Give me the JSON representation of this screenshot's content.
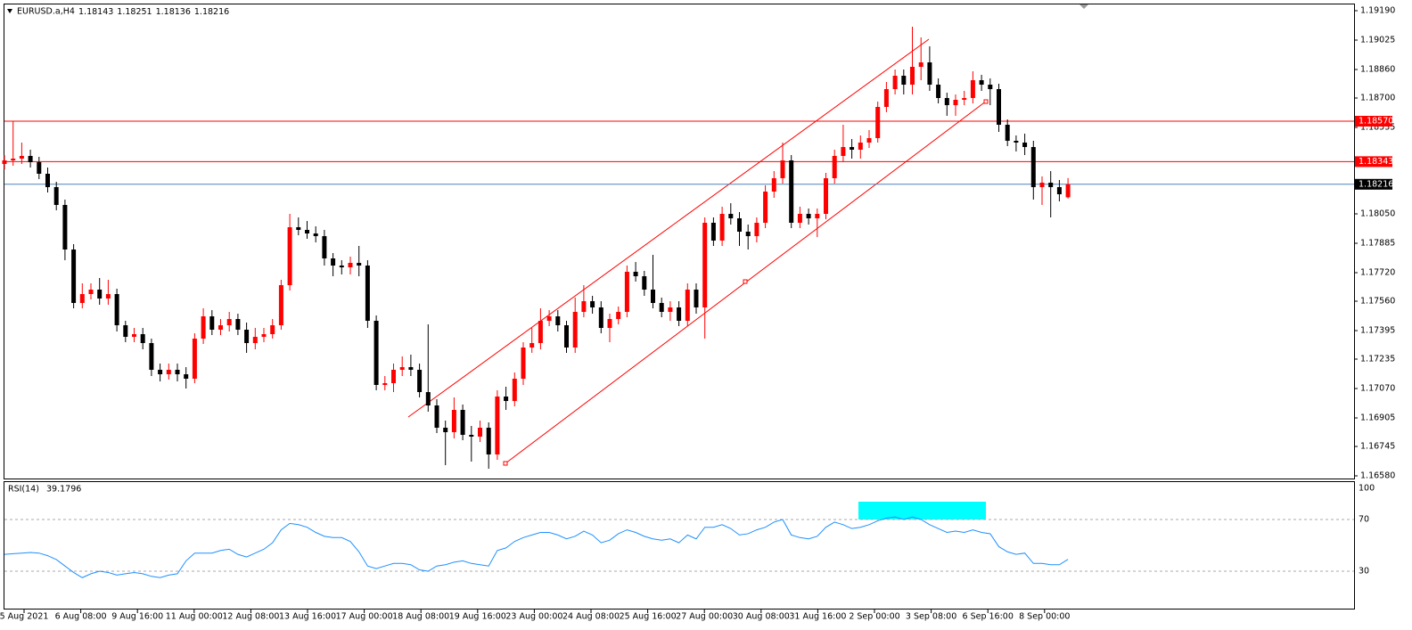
{
  "chart_data": {
    "type": "candlestick",
    "symbol": "EURUSD.a,H4",
    "up_color": "#ff0000",
    "down_color": "#000000",
    "ylim": [
      1.16565,
      1.1923
    ],
    "yticks": [
      {
        "value": 1.1919,
        "label": "1.19190"
      },
      {
        "value": 1.19025,
        "label": "1.19025"
      },
      {
        "value": 1.1886,
        "label": "1.18860"
      },
      {
        "value": 1.187,
        "label": "1.18700"
      },
      {
        "value": 1.18535,
        "label": "1.18535"
      },
      {
        "value": 1.1805,
        "label": "1.18050"
      },
      {
        "value": 1.17885,
        "label": "1.17885"
      },
      {
        "value": 1.1772,
        "label": "1.17720"
      },
      {
        "value": 1.1756,
        "label": "1.17560"
      },
      {
        "value": 1.17395,
        "label": "1.17395"
      },
      {
        "value": 1.17235,
        "label": "1.17235"
      },
      {
        "value": 1.1707,
        "label": "1.17070"
      },
      {
        "value": 1.16905,
        "label": "1.16905"
      },
      {
        "value": 1.16745,
        "label": "1.16745"
      },
      {
        "value": 1.1658,
        "label": "1.16580"
      }
    ],
    "levels": [
      {
        "value": 1.1857,
        "label": "1.18570"
      },
      1.18343
    ],
    "level_color": "#ff0000",
    "bid_color": "#4f81bd",
    "x_labels": [
      "5 Aug 2021",
      "6 Aug 08:00",
      "9 Aug 16:00",
      "11 Aug 00:00",
      "12 Aug 08:00",
      "13 Aug 16:00",
      "17 Aug 00:00",
      "18 Aug 08:00",
      "19 Aug 16:00",
      "23 Aug 00:00",
      "24 Aug 08:00",
      "25 Aug 16:00",
      "27 Aug 00:00",
      "30 Aug 08:00",
      "31 Aug 16:00",
      "2 Sep 00:00",
      "3 Sep 08:00",
      "6 Sep 16:00",
      "8 Sep 00:00"
    ],
    "candles": [
      [
        1.1833,
        1.1838,
        1.183,
        1.1835
      ],
      [
        1.1835,
        1.1857,
        1.1832,
        1.1836
      ],
      [
        1.1836,
        1.1845,
        1.1833,
        1.18375
      ],
      [
        1.18375,
        1.1841,
        1.1831,
        1.1834
      ],
      [
        1.1834,
        1.1837,
        1.18245,
        1.18275
      ],
      [
        1.18275,
        1.1831,
        1.1817,
        1.182
      ],
      [
        1.182,
        1.1823,
        1.1807,
        1.181
      ],
      [
        1.181,
        1.1813,
        1.1779,
        1.1785
      ],
      [
        1.1785,
        1.1788,
        1.1752,
        1.1755
      ],
      [
        1.1755,
        1.1766,
        1.1752,
        1.176
      ],
      [
        1.176,
        1.1766,
        1.1757,
        1.17625
      ],
      [
        1.17625,
        1.1769,
        1.1754,
        1.17575
      ],
      [
        1.17575,
        1.1768,
        1.1754,
        1.176
      ],
      [
        1.176,
        1.1763,
        1.1739,
        1.17425
      ],
      [
        1.17425,
        1.1745,
        1.1733,
        1.1736
      ],
      [
        1.1736,
        1.1741,
        1.1733,
        1.17375
      ],
      [
        1.17375,
        1.1741,
        1.1729,
        1.17325
      ],
      [
        1.17325,
        1.1735,
        1.1714,
        1.17175
      ],
      [
        1.17175,
        1.1721,
        1.1711,
        1.1715
      ],
      [
        1.1715,
        1.1721,
        1.1712,
        1.17175
      ],
      [
        1.17175,
        1.1721,
        1.1711,
        1.1715
      ],
      [
        1.1715,
        1.1719,
        1.1707,
        1.17125
      ],
      [
        1.17125,
        1.1738,
        1.171,
        1.1735
      ],
      [
        1.1735,
        1.1752,
        1.1732,
        1.17475
      ],
      [
        1.17475,
        1.1751,
        1.1737,
        1.174
      ],
      [
        1.174,
        1.1746,
        1.1737,
        1.17425
      ],
      [
        1.17425,
        1.175,
        1.1739,
        1.1746
      ],
      [
        1.1746,
        1.1749,
        1.1737,
        1.174
      ],
      [
        1.174,
        1.1744,
        1.1727,
        1.17325
      ],
      [
        1.17325,
        1.1741,
        1.1729,
        1.1736
      ],
      [
        1.1736,
        1.1741,
        1.1733,
        1.17375
      ],
      [
        1.17375,
        1.1746,
        1.1735,
        1.17425
      ],
      [
        1.17425,
        1.1768,
        1.174,
        1.1765
      ],
      [
        1.1765,
        1.1805,
        1.1762,
        1.17975
      ],
      [
        1.17975,
        1.1803,
        1.1793,
        1.1796
      ],
      [
        1.1796,
        1.1801,
        1.1791,
        1.1794
      ],
      [
        1.1794,
        1.1798,
        1.1789,
        1.17925
      ],
      [
        1.17925,
        1.1796,
        1.1776,
        1.178
      ],
      [
        1.178,
        1.1783,
        1.177,
        1.1776
      ],
      [
        1.1776,
        1.1779,
        1.1771,
        1.1775
      ],
      [
        1.1775,
        1.1781,
        1.1771,
        1.17775
      ],
      [
        1.17775,
        1.1787,
        1.177,
        1.1776
      ],
      [
        1.1776,
        1.1779,
        1.1741,
        1.1745
      ],
      [
        1.1745,
        1.1748,
        1.1706,
        1.1709
      ],
      [
        1.1709,
        1.1714,
        1.1706,
        1.171
      ],
      [
        1.171,
        1.1721,
        1.1705,
        1.17175
      ],
      [
        1.17175,
        1.1725,
        1.1714,
        1.1719
      ],
      [
        1.1719,
        1.1726,
        1.1714,
        1.17175
      ],
      [
        1.17175,
        1.1721,
        1.1702,
        1.1705
      ],
      [
        1.1705,
        1.1743,
        1.1694,
        1.16975
      ],
      [
        1.16975,
        1.1701,
        1.1682,
        1.1685
      ],
      [
        1.1685,
        1.1689,
        1.1664,
        1.16825
      ],
      [
        1.16825,
        1.1702,
        1.1679,
        1.1695
      ],
      [
        1.1695,
        1.1698,
        1.1678,
        1.1681
      ],
      [
        1.1681,
        1.1686,
        1.1666,
        1.168
      ],
      [
        1.168,
        1.1689,
        1.1677,
        1.1685
      ],
      [
        1.1685,
        1.1688,
        1.1662,
        1.167
      ],
      [
        1.167,
        1.1706,
        1.1667,
        1.17025
      ],
      [
        1.17025,
        1.1708,
        1.1695,
        1.17
      ],
      [
        1.17,
        1.1716,
        1.1697,
        1.17125
      ],
      [
        1.17125,
        1.1733,
        1.1709,
        1.173
      ],
      [
        1.173,
        1.1741,
        1.1727,
        1.17325
      ],
      [
        1.17325,
        1.1752,
        1.1729,
        1.1745
      ],
      [
        1.1745,
        1.1751,
        1.1742,
        1.17475
      ],
      [
        1.17475,
        1.1751,
        1.1739,
        1.17425
      ],
      [
        1.17425,
        1.1745,
        1.1727,
        1.173
      ],
      [
        1.173,
        1.1758,
        1.1727,
        1.175
      ],
      [
        1.175,
        1.1765,
        1.1747,
        1.1756
      ],
      [
        1.1756,
        1.1759,
        1.1749,
        1.17525
      ],
      [
        1.17525,
        1.1756,
        1.1738,
        1.1741
      ],
      [
        1.1741,
        1.1749,
        1.1733,
        1.1746
      ],
      [
        1.1746,
        1.1753,
        1.1743,
        1.175
      ],
      [
        1.175,
        1.1776,
        1.1747,
        1.17725
      ],
      [
        1.17725,
        1.1778,
        1.1767,
        1.177
      ],
      [
        1.177,
        1.1773,
        1.1759,
        1.17625
      ],
      [
        1.17625,
        1.1782,
        1.1752,
        1.1755
      ],
      [
        1.1755,
        1.1758,
        1.1747,
        1.175
      ],
      [
        1.175,
        1.1756,
        1.1745,
        1.17525
      ],
      [
        1.17525,
        1.1756,
        1.1742,
        1.1745
      ],
      [
        1.1745,
        1.1766,
        1.1742,
        1.17625
      ],
      [
        1.17625,
        1.1766,
        1.1749,
        1.17525
      ],
      [
        1.17525,
        1.1803,
        1.1735,
        1.18
      ],
      [
        1.18,
        1.1803,
        1.1787,
        1.179
      ],
      [
        1.179,
        1.1809,
        1.1787,
        1.1805
      ],
      [
        1.1805,
        1.1811,
        1.1799,
        1.18025
      ],
      [
        1.18025,
        1.1806,
        1.1787,
        1.1795
      ],
      [
        1.1795,
        1.1799,
        1.1785,
        1.17925
      ],
      [
        1.17925,
        1.1803,
        1.1789,
        1.18
      ],
      [
        1.18,
        1.1821,
        1.1797,
        1.18175
      ],
      [
        1.18175,
        1.1829,
        1.1814,
        1.1825
      ],
      [
        1.1825,
        1.1845,
        1.1822,
        1.1835
      ],
      [
        1.1835,
        1.1838,
        1.1797,
        1.18
      ],
      [
        1.18,
        1.1809,
        1.1797,
        1.1805
      ],
      [
        1.1805,
        1.1808,
        1.1799,
        1.18025
      ],
      [
        1.18025,
        1.1808,
        1.1792,
        1.1805
      ],
      [
        1.1805,
        1.1828,
        1.1802,
        1.1825
      ],
      [
        1.1825,
        1.1841,
        1.1822,
        1.18375
      ],
      [
        1.18375,
        1.1855,
        1.1834,
        1.18425
      ],
      [
        1.18425,
        1.1847,
        1.1836,
        1.1841
      ],
      [
        1.1841,
        1.1849,
        1.1836,
        1.1845
      ],
      [
        1.1845,
        1.1852,
        1.1842,
        1.18475
      ],
      [
        1.18475,
        1.1868,
        1.1845,
        1.1865
      ],
      [
        1.1865,
        1.1879,
        1.1862,
        1.1875
      ],
      [
        1.1875,
        1.1886,
        1.1872,
        1.18825
      ],
      [
        1.18825,
        1.1886,
        1.1872,
        1.18775
      ],
      [
        1.18775,
        1.191,
        1.1872,
        1.18875
      ],
      [
        1.18875,
        1.1904,
        1.188,
        1.189
      ],
      [
        1.189,
        1.1899,
        1.1874,
        1.18775
      ],
      [
        1.18775,
        1.1881,
        1.1867,
        1.187
      ],
      [
        1.187,
        1.1873,
        1.186,
        1.1866
      ],
      [
        1.1866,
        1.1872,
        1.186,
        1.1869
      ],
      [
        1.1869,
        1.1874,
        1.1866,
        1.187
      ],
      [
        1.187,
        1.1885,
        1.1867,
        1.188
      ],
      [
        1.188,
        1.1883,
        1.1874,
        1.18775
      ],
      [
        1.18775,
        1.1881,
        1.1866,
        1.1875
      ],
      [
        1.1875,
        1.1878,
        1.1851,
        1.1855
      ],
      [
        1.1855,
        1.1858,
        1.1843,
        1.1846
      ],
      [
        1.1846,
        1.1849,
        1.184,
        1.1845
      ],
      [
        1.1845,
        1.185,
        1.1838,
        1.18425
      ],
      [
        1.18425,
        1.1846,
        1.1813,
        1.182
      ],
      [
        1.182,
        1.1826,
        1.181,
        1.18225
      ],
      [
        1.18225,
        1.1829,
        1.1803,
        1.182
      ],
      [
        1.182,
        1.1824,
        1.1812,
        1.1816
      ],
      [
        1.18143,
        1.18251,
        1.18136,
        1.18216
      ]
    ],
    "rsi": {
      "name": "RSI(14)",
      "color": "#1e90ff",
      "ylim": [
        0,
        100
      ],
      "yticks": [
        100,
        70,
        30
      ],
      "values": [
        43,
        43.5,
        44,
        44.5,
        44,
        42,
        39,
        34,
        29,
        25,
        28,
        30,
        29,
        27,
        28,
        29,
        28,
        26,
        25,
        27,
        28,
        38,
        44,
        44,
        44,
        46,
        47,
        43,
        41,
        44,
        47,
        52,
        62,
        67,
        66,
        64,
        60,
        57,
        56,
        56,
        53,
        45,
        34,
        32,
        34,
        36,
        36,
        35,
        31,
        30,
        34,
        35,
        37,
        38,
        36,
        35,
        34,
        46,
        48,
        53,
        56,
        58,
        60,
        60,
        58,
        55,
        57,
        61,
        58,
        52,
        54,
        59,
        62,
        60,
        57,
        55,
        54,
        55,
        52,
        58,
        55,
        64,
        64,
        66,
        63,
        58,
        59,
        62,
        64,
        68,
        70,
        58,
        56,
        55,
        57,
        64,
        68,
        66,
        63,
        64,
        66,
        69,
        71,
        72,
        70,
        72,
        70,
        66,
        63,
        60,
        61,
        60,
        62,
        60,
        59,
        49,
        45,
        43,
        44,
        36,
        36,
        35,
        35,
        39.1796
      ]
    }
  }
}
